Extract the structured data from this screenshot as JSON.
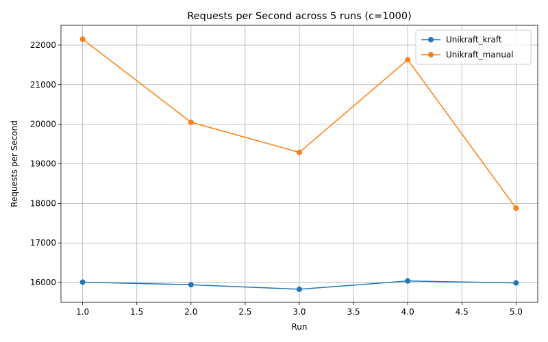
{
  "chart_data": {
    "type": "line",
    "title": "Requests per Second across 5 runs (c=1000)",
    "xlabel": "Run",
    "ylabel": "Requests per Second",
    "xlim": [
      0.8,
      5.2
    ],
    "ylim": [
      15500,
      22500
    ],
    "xticks": [
      "1.0",
      "1.5",
      "2.0",
      "2.5",
      "3.0",
      "3.5",
      "4.0",
      "4.5",
      "5.0"
    ],
    "yticks": [
      "16000",
      "17000",
      "18000",
      "19000",
      "20000",
      "21000",
      "22000"
    ],
    "grid": true,
    "legend_position": "top-right",
    "x": [
      1,
      2,
      3,
      4,
      5
    ],
    "series": [
      {
        "name": "Unikraft_kraft",
        "color": "#1f77b4",
        "marker": "circle",
        "values": [
          16010,
          15945,
          15830,
          16040,
          15990
        ]
      },
      {
        "name": "Unikraft_manual",
        "color": "#ff7f0e",
        "marker": "circle",
        "values": [
          22150,
          20050,
          19290,
          21630,
          17880
        ]
      }
    ]
  }
}
